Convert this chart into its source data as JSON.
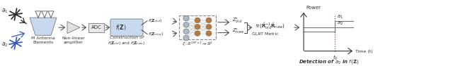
{
  "fig_width": 6.4,
  "fig_height": 0.94,
  "dpi": 100,
  "bg_color": "#ffffff",
  "a1_label": "$a_1$",
  "a2_label": "$a_2$",
  "antenna_box_color": "#c8d8ee",
  "antenna_label": "M Antenna\nElements",
  "amp_label": "Non-linear\namplifier",
  "adc_label": "ADC",
  "fz_box_color": "#c8d8ee",
  "fz_box_label": "$f(\\mathbf{Z})$",
  "fz_old_label": "$f(\\mathbf{Z}_{old})$",
  "fz_new_label": "$f(\\mathbf{Z}_{new})$",
  "nn_label_top": "Construction of",
  "nn_label_bot1": "$f(\\mathbf{Z}_{old})$ and $f(\\mathbf{Z}_{new})$",
  "nn_label_bot2": "$\\zeta: \\mathbb{R}^{2M\\times 1}\\rightarrow \\mathbb{R}^2$",
  "z_old_label": "$Z^{\\prime}_{old}$",
  "z_new_label": "$Z^{\\prime}_{new}$",
  "glrt_label": "$\\mathrm{tr}(\\hat{\\mathbf{R}}^{-1}_{old}\\hat{\\mathbf{R}}_{new})$",
  "glrt_metric_label": "GLRT Metric",
  "plot_power_label": "Power",
  "plot_time_label": "Time (t)",
  "plot_t0_label": "$t_0$",
  "plot_a1_label": "$a_1$",
  "plot_a2_label": "$a_2$",
  "plot_caption": "Detection of $a_2$ in $f(\\mathbf{Z})$",
  "signal_color_a1": "#282828",
  "signal_color_a2": "#3355bb",
  "arrow_color": "#555555",
  "dashed_line_color": "#dd3333",
  "node_color_gray": "#aabbcc",
  "node_color_brown": "#bb7733"
}
